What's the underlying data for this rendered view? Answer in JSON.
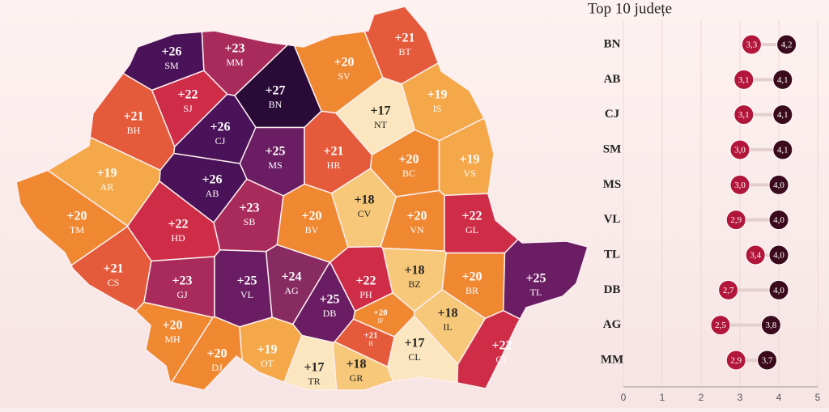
{
  "chart_data": [
    {
      "type": "choropleth",
      "categories": [
        "SM",
        "MM",
        "BT",
        "SV",
        "BN",
        "SJ",
        "BH",
        "IS",
        "NT",
        "CJ",
        "MS",
        "HR",
        "BC",
        "VS",
        "AR",
        "AB",
        "CV",
        "SB",
        "BV",
        "VN",
        "GL",
        "TM",
        "HD",
        "CS",
        "GJ",
        "VL",
        "AG",
        "DB",
        "PH",
        "BZ",
        "BR",
        "TL",
        "MH",
        "DJ",
        "OT",
        "TR",
        "GR",
        "IF",
        "B",
        "IL",
        "CL",
        "CT"
      ],
      "values": [
        26,
        23,
        21,
        20,
        27,
        22,
        21,
        19,
        17,
        26,
        25,
        21,
        20,
        19,
        19,
        26,
        18,
        23,
        20,
        20,
        22,
        20,
        22,
        21,
        23,
        25,
        24,
        25,
        22,
        18,
        20,
        25,
        20,
        20,
        19,
        17,
        18,
        20,
        21,
        18,
        17,
        22
      ],
      "value_labels": [
        "+26",
        "+23",
        "+21",
        "+20",
        "+27",
        "+22",
        "+21",
        "+19",
        "+17",
        "+26",
        "+25",
        "+21",
        "+20",
        "+19",
        "+19",
        "+26",
        "+18",
        "+23",
        "+20",
        "+20",
        "+22",
        "+20",
        "+22",
        "+21",
        "+23",
        "+25",
        "+24",
        "+25",
        "+22",
        "+18",
        "+20",
        "+25",
        "+20",
        "+20",
        "+19",
        "+17",
        "+18",
        "+20",
        "+21",
        "+18",
        "+17",
        "+22"
      ]
    },
    {
      "type": "dumbbell",
      "title": "Top 10 județe",
      "categories": [
        "BN",
        "AB",
        "CJ",
        "SM",
        "MS",
        "VL",
        "TL",
        "DB",
        "AG",
        "MM"
      ],
      "series": [
        {
          "color": "#b3163b",
          "values": [
            3.3,
            3.1,
            3.1,
            3.0,
            3.0,
            2.9,
            3.4,
            2.7,
            2.5,
            2.9
          ],
          "value_labels": [
            "3,3",
            "3,1",
            "3,1",
            "3,0",
            "3,0",
            "2,9",
            "3,4",
            "2,7",
            "2,5",
            "2,9"
          ]
        },
        {
          "color": "#3b0a1c",
          "values": [
            4.2,
            4.1,
            4.1,
            4.1,
            4.0,
            4.0,
            4.0,
            4.0,
            3.8,
            3.7
          ],
          "value_labels": [
            "4,2",
            "4,1",
            "4,1",
            "4,1",
            "4,0",
            "4,0",
            "4,0",
            "4,0",
            "3,8",
            "3,7"
          ]
        }
      ],
      "xlim": [
        0,
        5
      ],
      "xticks": [
        0,
        1,
        2,
        3,
        4,
        5
      ],
      "grid": true
    }
  ]
}
